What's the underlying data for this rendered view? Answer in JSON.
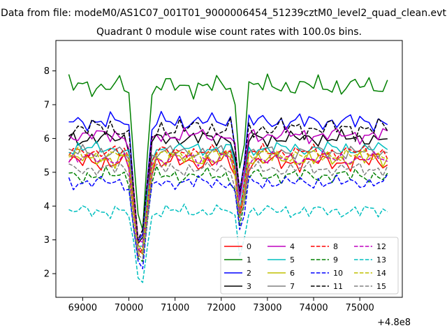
{
  "chart_data": {
    "type": "line",
    "suptitle": "Data from file: modeM0/AS1C07_001T01_9000006454_51239cztM0_level2_quad_clean.evt",
    "title": "Quadrant 0 module wise count rates with 100.0s bins.",
    "xlabel": "",
    "ylabel": "",
    "x_offset_label": "+4.8e8",
    "xlim": [
      68420,
      75920
    ],
    "ylim": [
      1.3,
      8.9
    ],
    "x_ticks": [
      69000,
      70000,
      71000,
      72000,
      73000,
      74000,
      75000
    ],
    "y_ticks": [
      2,
      3,
      4,
      5,
      6,
      7,
      8
    ],
    "x_start": 68700,
    "x_step": 100,
    "legend_position": "lower-right",
    "series": [
      {
        "name": "0",
        "color": "#ff0000",
        "dash": "solid",
        "base": 5.3,
        "amp": 0.25
      },
      {
        "name": "1",
        "color": "#008000",
        "dash": "solid",
        "base": 7.55,
        "amp": 0.3
      },
      {
        "name": "2",
        "color": "#0000ff",
        "dash": "solid",
        "base": 6.5,
        "amp": 0.25
      },
      {
        "name": "3",
        "color": "#000000",
        "dash": "solid",
        "base": 6.0,
        "amp": 0.22
      },
      {
        "name": "4",
        "color": "#bf00bf",
        "dash": "solid",
        "base": 6.1,
        "amp": 0.22
      },
      {
        "name": "5",
        "color": "#00bfbf",
        "dash": "solid",
        "base": 5.7,
        "amp": 0.2
      },
      {
        "name": "6",
        "color": "#bfbf00",
        "dash": "solid",
        "base": 5.4,
        "amp": 0.25
      },
      {
        "name": "7",
        "color": "#808080",
        "dash": "solid",
        "base": 5.6,
        "amp": 0.2
      },
      {
        "name": "8",
        "color": "#ff0000",
        "dash": "dashed",
        "base": 5.6,
        "amp": 0.2
      },
      {
        "name": "9",
        "color": "#008000",
        "dash": "dashed",
        "base": 4.9,
        "amp": 0.22
      },
      {
        "name": "10",
        "color": "#0000ff",
        "dash": "dashed",
        "base": 4.7,
        "amp": 0.2
      },
      {
        "name": "11",
        "color": "#000000",
        "dash": "dashed",
        "base": 6.3,
        "amp": 0.3
      },
      {
        "name": "12",
        "color": "#bf00bf",
        "dash": "dashed",
        "base": 5.4,
        "amp": 0.2
      },
      {
        "name": "13",
        "color": "#00bfbf",
        "dash": "dashed",
        "base": 3.85,
        "amp": 0.2
      },
      {
        "name": "14",
        "color": "#bfbf00",
        "dash": "dashed",
        "base": 5.5,
        "amp": 0.2
      },
      {
        "name": "15",
        "color": "#808080",
        "dash": "dashed",
        "base": 5.1,
        "amp": 0.2
      }
    ]
  }
}
